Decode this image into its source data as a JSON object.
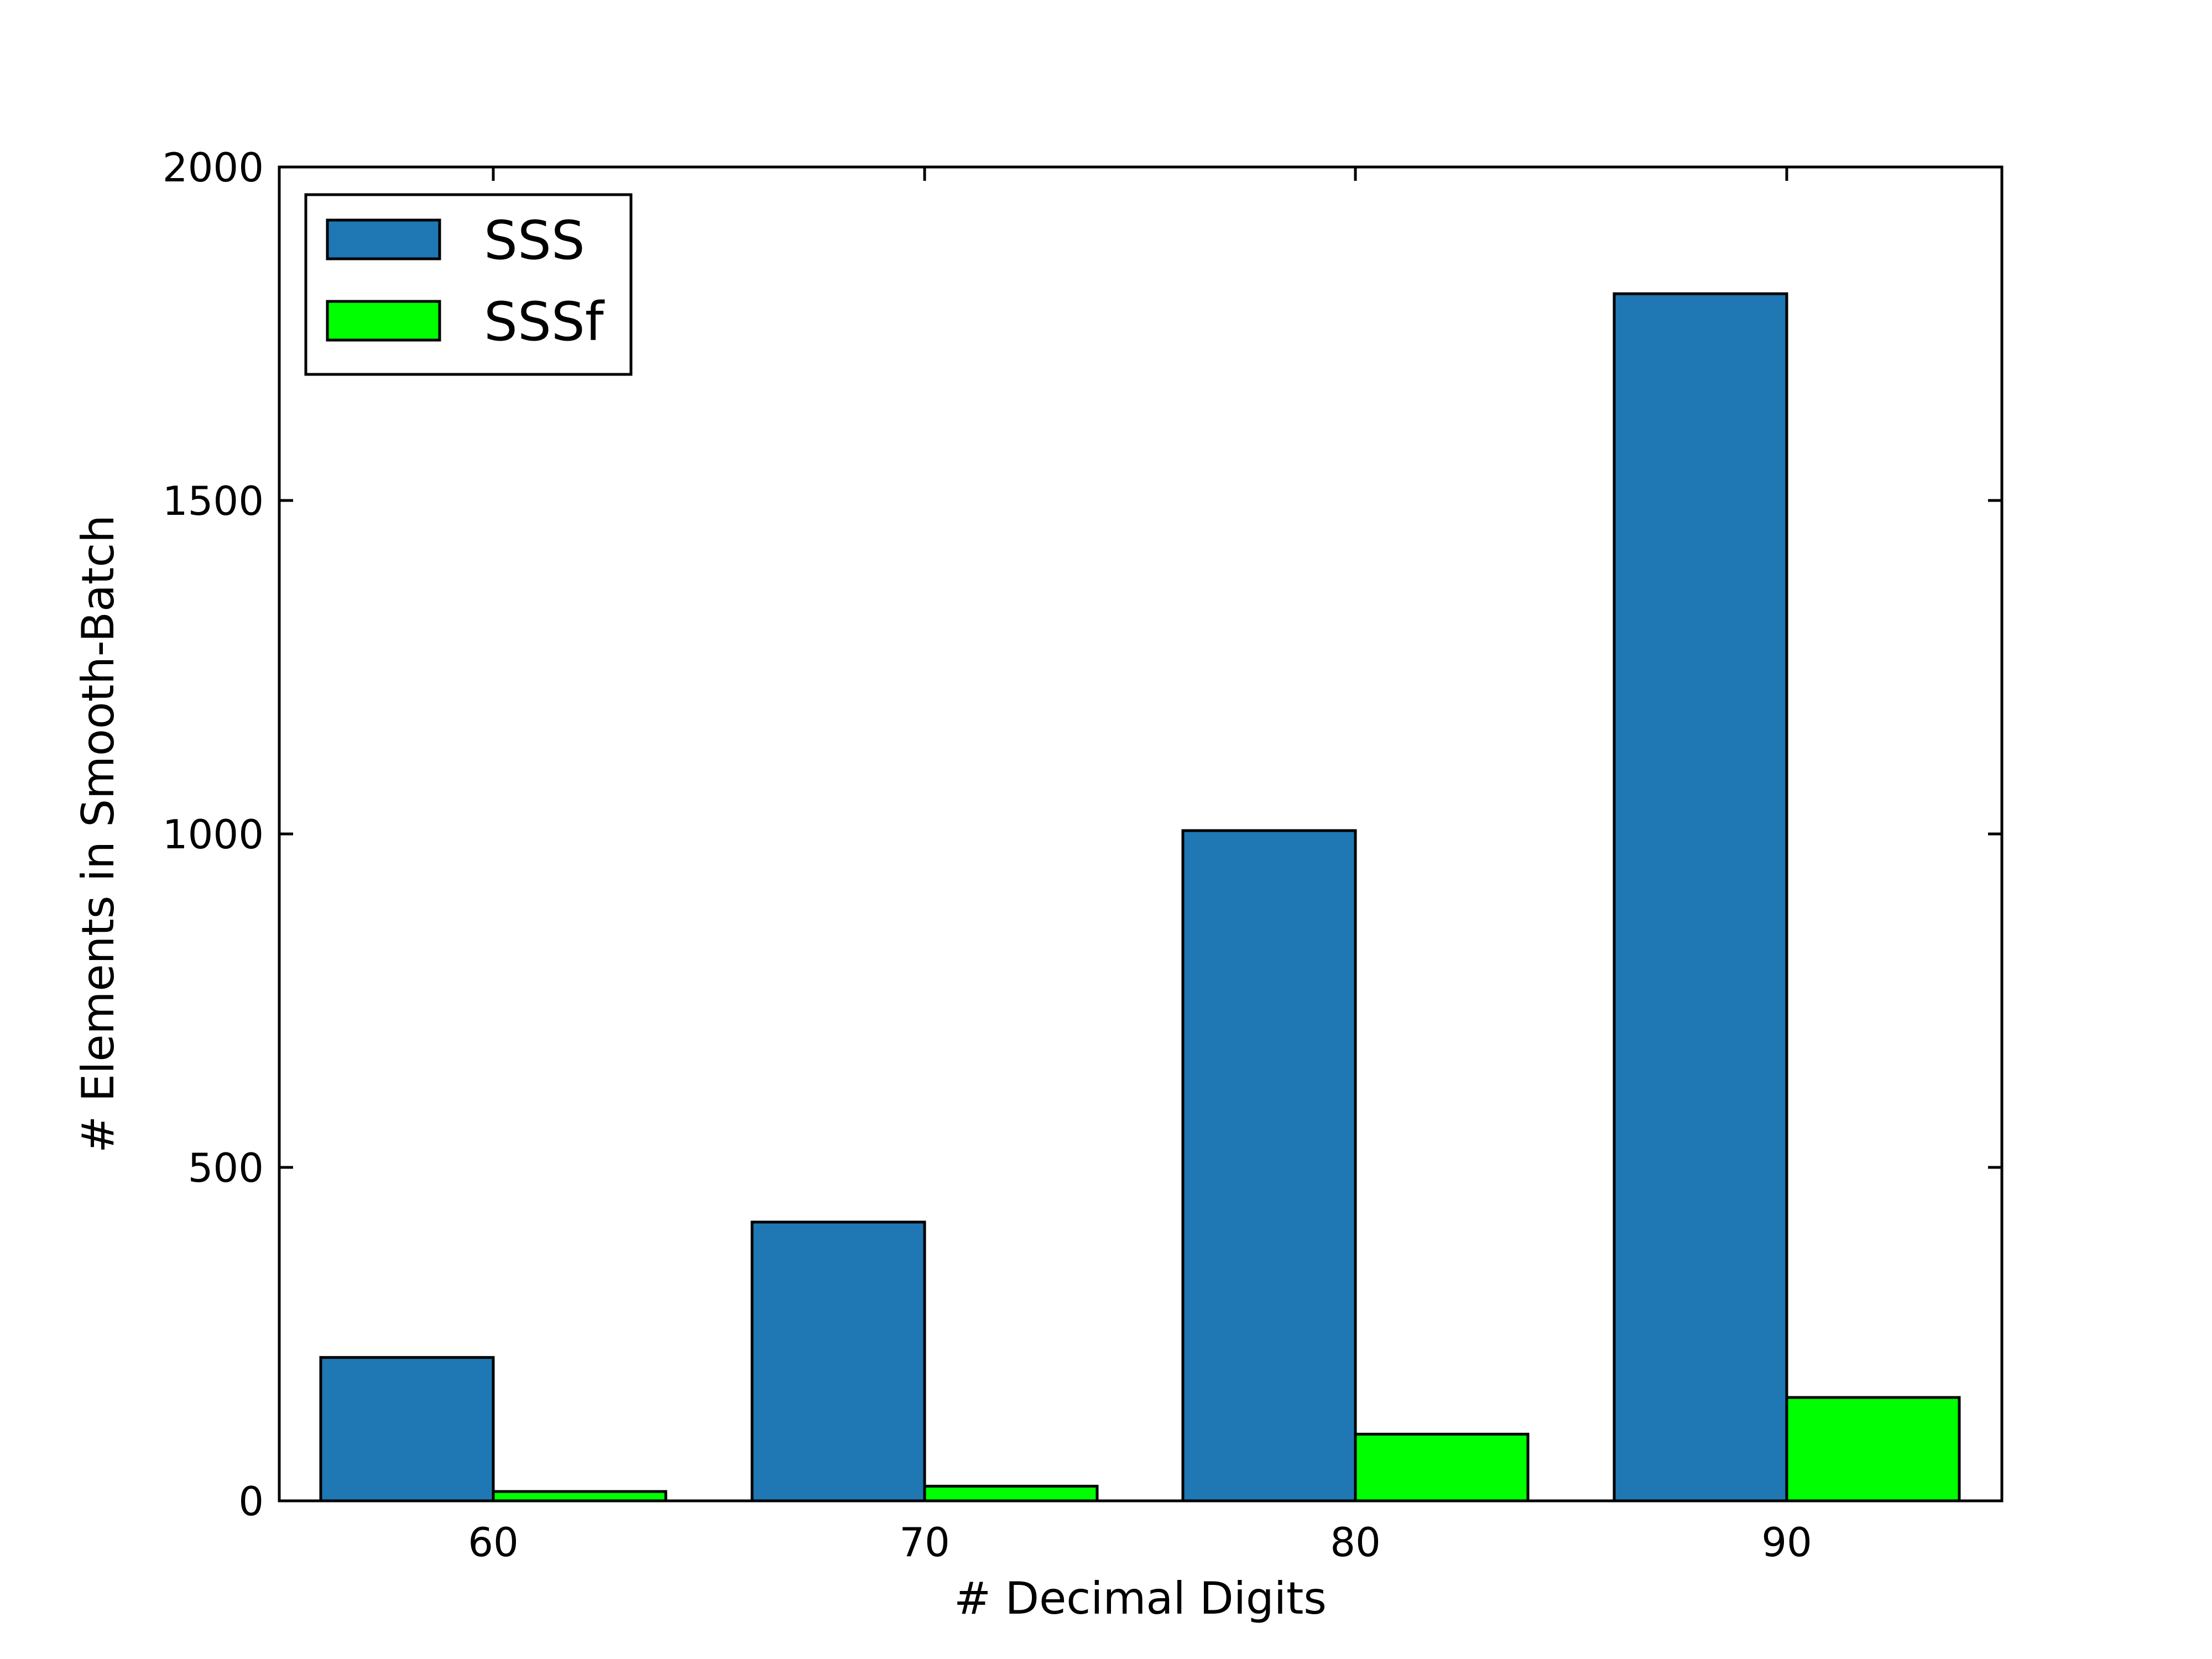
{
  "chart_data": {
    "type": "bar",
    "xlabel": "# Decimal Digits",
    "ylabel": "# Elements in Smooth-Batch",
    "categories": [
      "60",
      "70",
      "80",
      "90"
    ],
    "ylim": [
      0,
      2000
    ],
    "yticks": [
      "0",
      "500",
      "1000",
      "1500",
      "2000"
    ],
    "grid": false,
    "legend_position": "top-left",
    "series": [
      {
        "name": "SSS",
        "color": "#1f77b4",
        "values": [
          215,
          418,
          1005,
          1810
        ]
      },
      {
        "name": "SSSf",
        "color": "#00ff00",
        "values": [
          14,
          22,
          100,
          155
        ]
      }
    ]
  }
}
